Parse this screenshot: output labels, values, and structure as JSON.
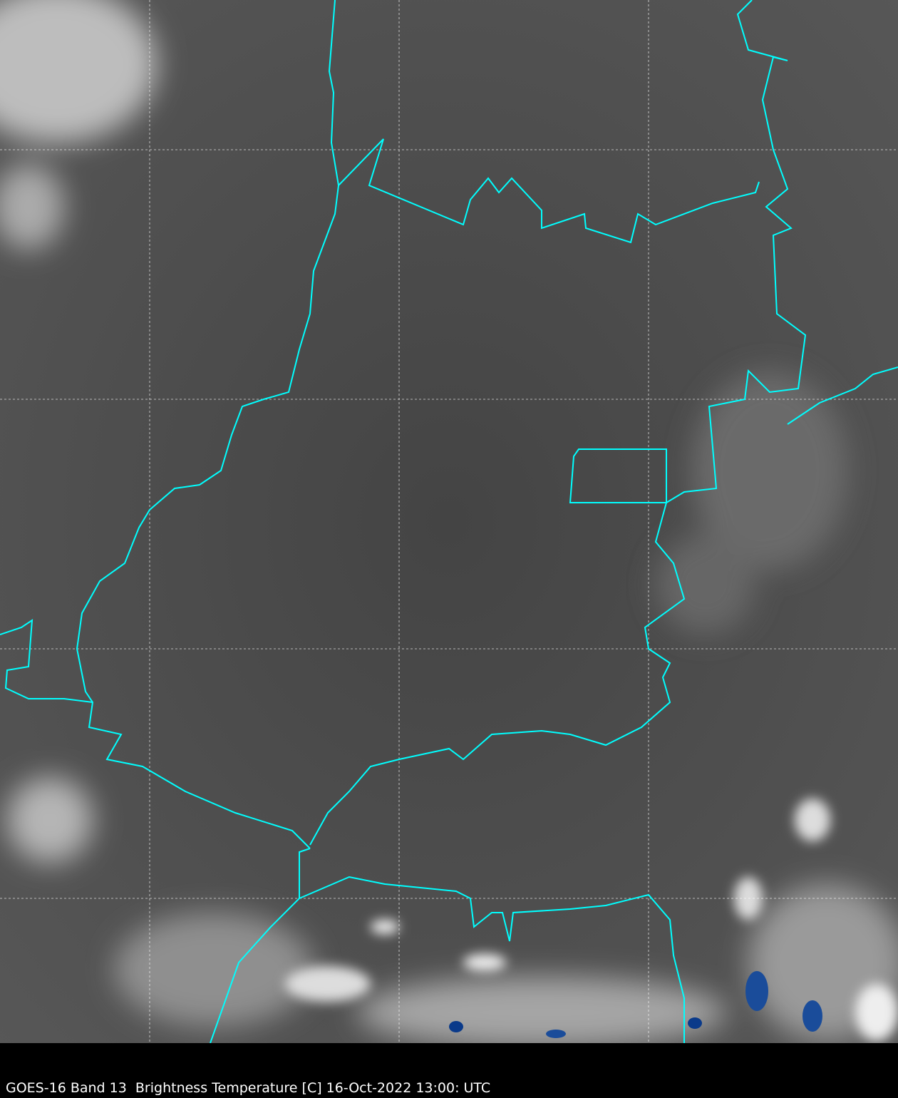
{
  "caption": "GOES-16 Band 13  Brightness Temperature [C] 16-Oct-2022 13:00: UTC",
  "colors": {
    "border": "#00ffff",
    "grid": "#ffffff",
    "land": "#4a4a4a",
    "cold_cloud": "#0a3a8a"
  }
}
